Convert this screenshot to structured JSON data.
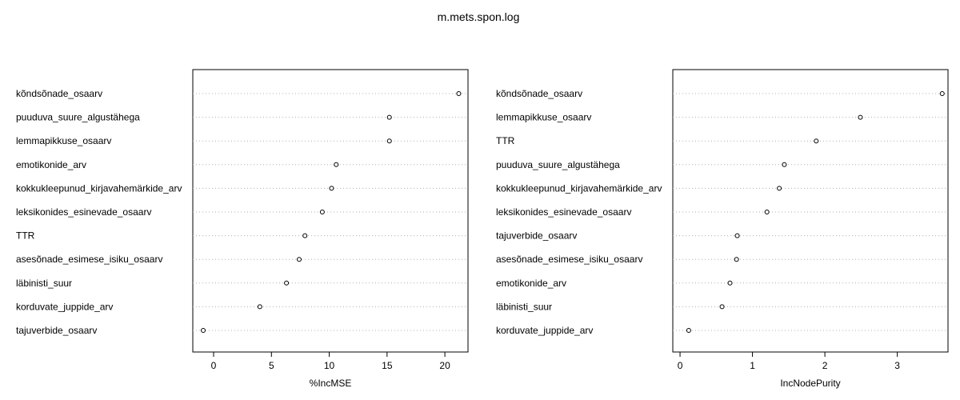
{
  "title": "m.mets.spon.log",
  "chart_data": [
    {
      "type": "scatter",
      "style": "dotchart",
      "xlabel": "%IncMSE",
      "xlim": [
        -1.8,
        22.0
      ],
      "xticks": [
        0,
        5,
        10,
        15,
        20
      ],
      "grid": "dotted horizontal guide lines",
      "categories": [
        "kõndsõnade_osaarv",
        "puuduva_suure_algustähega",
        "lemmapikkuse_osaarv",
        "emotikonide_arv",
        "kokkukleepunud_kirjavahemärkide_arv",
        "leksikonides_esinevade_osaarv",
        "TTR",
        "asesõnade_esimese_isiku_osaarv",
        "läbinisti_suur",
        "korduvate_juppide_arv",
        "tajuverbide_osaarv"
      ],
      "values": [
        21.2,
        15.2,
        15.2,
        10.6,
        10.2,
        9.4,
        7.9,
        7.4,
        6.3,
        4.0,
        -0.9
      ]
    },
    {
      "type": "scatter",
      "style": "dotchart",
      "xlabel": "IncNodePurity",
      "xlim": [
        -0.1,
        3.7
      ],
      "xticks": [
        0,
        1,
        2,
        3
      ],
      "grid": "dotted horizontal guide lines",
      "categories": [
        "kõndsõnade_osaarv",
        "lemmapikkuse_osaarv",
        "TTR",
        "puuduva_suure_algustähega",
        "kokkukleepunud_kirjavahemärkide_arv",
        "leksikonides_esinevade_osaarv",
        "tajuverbide_osaarv",
        "asesõnade_esimese_isiku_osaarv",
        "emotikonide_arv",
        "läbinisti_suur",
        "korduvate_juppide_arv"
      ],
      "values": [
        3.62,
        2.49,
        1.88,
        1.44,
        1.37,
        1.2,
        0.79,
        0.78,
        0.69,
        0.58,
        0.12
      ]
    }
  ]
}
